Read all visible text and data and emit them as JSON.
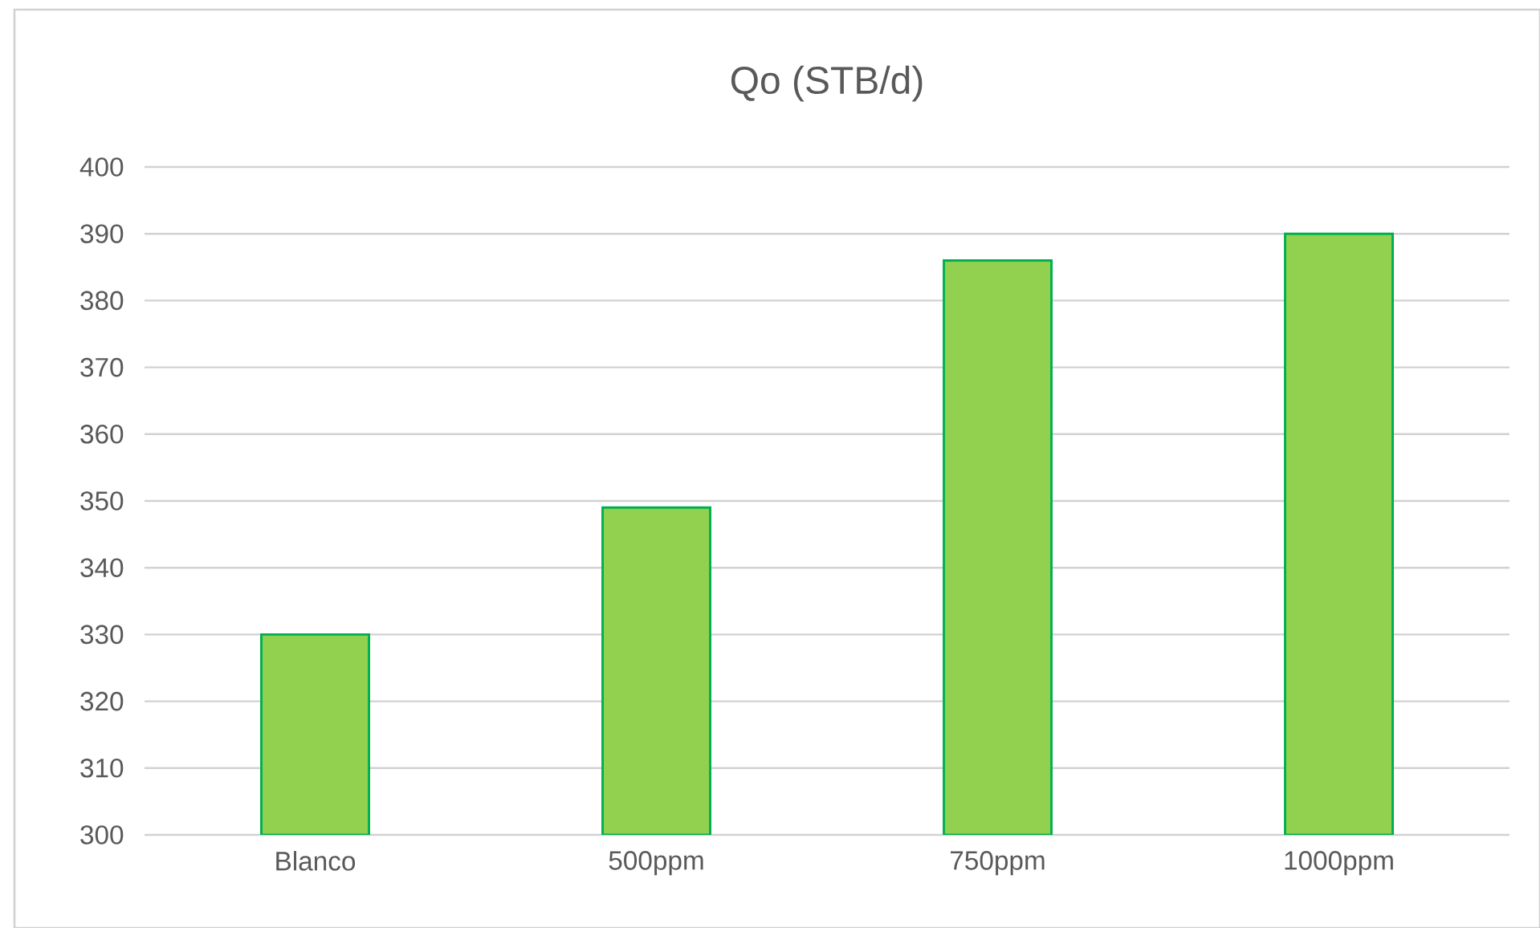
{
  "chart_data": {
    "type": "bar",
    "title": "Qo (STB/d)",
    "categories": [
      "Blanco",
      "500ppm",
      "750ppm",
      "1000ppm"
    ],
    "values": [
      330,
      349,
      386,
      390
    ],
    "color": "#92d050",
    "ylim": [
      300,
      400
    ],
    "yticks": [
      300,
      310,
      320,
      330,
      340,
      350,
      360,
      370,
      380,
      390,
      400
    ],
    "grid": "y"
  }
}
